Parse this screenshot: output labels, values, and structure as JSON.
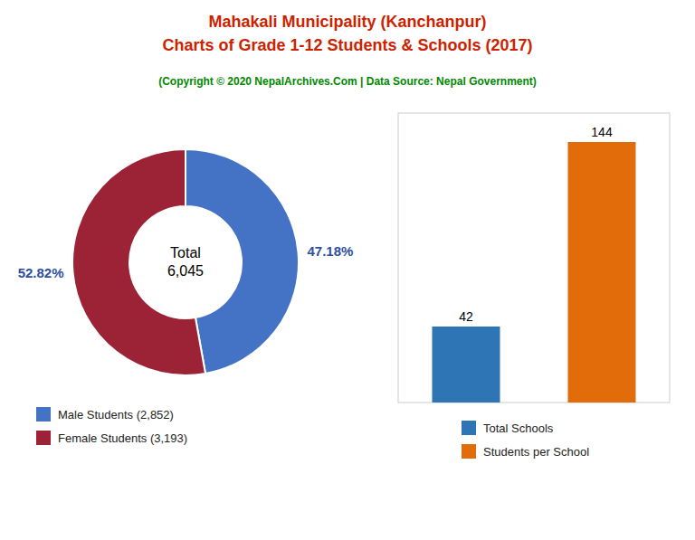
{
  "title": "Mahakali Municipality (Kanchanpur)\nCharts of Grade 1-12 Students & Schools (2017)",
  "subtitle": "(Copyright © 2020 NepalArchives.Com | Data Source: Nepal Government)",
  "chart_data": [
    {
      "type": "pie",
      "categories": [
        "Male Students (2,852)",
        "Female Students (3,193)"
      ],
      "values": [
        47.18,
        52.82
      ],
      "value_labels": [
        "47.18%",
        "52.82%"
      ],
      "colors": [
        "#4472c4",
        "#9b2335"
      ],
      "annotations": [
        "Total\n6,045"
      ],
      "data_labels": true,
      "legend": "bottom"
    },
    {
      "type": "bar",
      "categories": [
        "Total Schools",
        "Students per School"
      ],
      "values": [
        42,
        144
      ],
      "colors": [
        "#2e75b6",
        "#e36c0a"
      ],
      "ylim": [
        0,
        160
      ],
      "tick_labels": false,
      "data_labels": true,
      "legend": "bottom"
    }
  ]
}
